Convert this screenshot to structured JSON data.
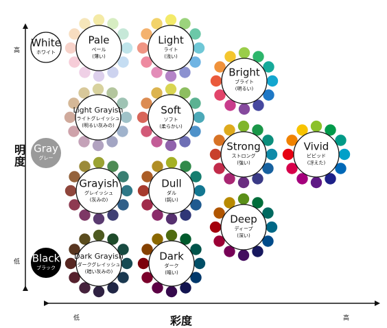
{
  "axes": {
    "y_title": "明度",
    "y_high": "高",
    "y_low": "低",
    "x_title": "彩度",
    "x_low": "低",
    "x_high": "高"
  },
  "achromatic": [
    {
      "id": "white",
      "en": "White",
      "jp": "ホワイト",
      "fill": "#ffffff",
      "text": "#111111"
    },
    {
      "id": "gray",
      "en": "Gray",
      "jp": "グレー",
      "fill": "#9a9a9a",
      "text": "#ffffff"
    },
    {
      "id": "black",
      "en": "Black",
      "jp": "ブラック",
      "fill": "#000000",
      "text": "#ffffff"
    }
  ],
  "tones": [
    {
      "id": "pale",
      "en": "Pale",
      "jp": "ペール",
      "jp2": "(薄い)",
      "colors": [
        "#f4eaa6",
        "#d7edc2",
        "#c6e8d8",
        "#bfe4ea",
        "#c5ddf2",
        "#cdd3ef",
        "#ddd0ec",
        "#efd0e6",
        "#f6cdd8",
        "#f7d2c9",
        "#f7ddc0",
        "#f6e6ba"
      ]
    },
    {
      "id": "light",
      "en": "Light",
      "jp": "ライト",
      "jp2": "(浅い)",
      "colors": [
        "#f3ea6a",
        "#9bd37c",
        "#6cc8a8",
        "#6fc7d6",
        "#6fb4e3",
        "#8c92d0",
        "#b483c7",
        "#e38cb8",
        "#ee8aa0",
        "#ef9584",
        "#f4b26e",
        "#f2d36a"
      ]
    },
    {
      "id": "bright",
      "en": "Bright",
      "jp": "ブライト",
      "jp2": "(明るい)",
      "colors": [
        "#9acd4a",
        "#2db56b",
        "#16aa9a",
        "#13a6cf",
        "#1e78c6",
        "#46489f",
        "#864a9e",
        "#c83c8c",
        "#e2456a",
        "#ea5a3c",
        "#f0923b",
        "#f4c62e"
      ]
    },
    {
      "id": "lightgrayish",
      "en": "Light Grayish",
      "jp": "ライトグレイッシュ",
      "jp2": "(明るい灰みの)",
      "colors": [
        "#d8d29e",
        "#b4c69e",
        "#9fc3b4",
        "#a0c2c8",
        "#a0b3cc",
        "#a3a5c3",
        "#b1a3c0",
        "#c4a2b8",
        "#cea2aa",
        "#d0aa9c",
        "#d5b897",
        "#d8c89a"
      ]
    },
    {
      "id": "soft",
      "en": "Soft",
      "jp": "ソフト",
      "jp2": "(柔らかい)",
      "colors": [
        "#d9d553",
        "#8dbe60",
        "#5bb292",
        "#4ca9b8",
        "#4e92c9",
        "#6e6fb5",
        "#9062ac",
        "#c35d97",
        "#d25a78",
        "#d8665a",
        "#dc8c52",
        "#dcb44f"
      ]
    },
    {
      "id": "strong",
      "en": "Strong",
      "jp": "ストロング",
      "jp2": "(強い)",
      "colors": [
        "#80b52a",
        "#1a9648",
        "#0c8e7c",
        "#0e8aa8",
        "#17619f",
        "#3a3a86",
        "#6a2e80",
        "#a82672",
        "#c22b4a",
        "#c8402c",
        "#d77225",
        "#deaa1d"
      ]
    },
    {
      "id": "vivid",
      "en": "Vivid",
      "jp": "ビビッド",
      "jp2": "(冴えた)",
      "colors": [
        "#8bc12a",
        "#009a4a",
        "#009a87",
        "#00a0c8",
        "#0068b7",
        "#1d2088",
        "#5f1985",
        "#a4007c",
        "#d7004a",
        "#e60012",
        "#f08200",
        "#f8c300"
      ]
    },
    {
      "id": "grayish",
      "en": "Grayish",
      "jp": "グレイッシュ",
      "jp2": "(灰みの)",
      "colors": [
        "#9ba334",
        "#4d8b54",
        "#397f72",
        "#2f7887",
        "#305f89",
        "#3f3f74",
        "#5a3a70",
        "#7d3865",
        "#8e3a51",
        "#8f463c",
        "#94623b",
        "#9b8a39"
      ]
    },
    {
      "id": "dull",
      "en": "Dull",
      "jp": "ダル",
      "jp2": "(鈍い)",
      "colors": [
        "#a5b125",
        "#31894a",
        "#157d6f",
        "#137791",
        "#1f5a8f",
        "#2f3677",
        "#56306f",
        "#8a2b6a",
        "#a02b4b",
        "#a63a2e",
        "#ab5d26",
        "#b08d24"
      ]
    },
    {
      "id": "deep",
      "en": "Deep",
      "jp": "ディープ",
      "jp2": "(深い)",
      "colors": [
        "#5a8f18",
        "#006d3a",
        "#00695f",
        "#006886",
        "#004b8a",
        "#17185e",
        "#440e5f",
        "#760056",
        "#9c0035",
        "#a4000c",
        "#b05500",
        "#b88a00"
      ]
    },
    {
      "id": "darkgrayish",
      "en": "Dark Grayish",
      "jp": "ダークグレイッシュ",
      "jp2": "(暗い灰みの)",
      "colors": [
        "#4e5a20",
        "#1e4a2a",
        "#184a41",
        "#174a52",
        "#1a3850",
        "#202645",
        "#2f2242",
        "#45223c",
        "#55202d",
        "#562621",
        "#583620",
        "#5a4c1e"
      ]
    },
    {
      "id": "dark",
      "en": "Dark",
      "jp": "ダーク",
      "jp2": "(暗い)",
      "colors": [
        "#4f6b10",
        "#005a2c",
        "#00534a",
        "#004e66",
        "#00376a",
        "#131450",
        "#35094c",
        "#5b0044",
        "#7a002a",
        "#7c000a",
        "#844000",
        "#8a6700"
      ]
    }
  ]
}
